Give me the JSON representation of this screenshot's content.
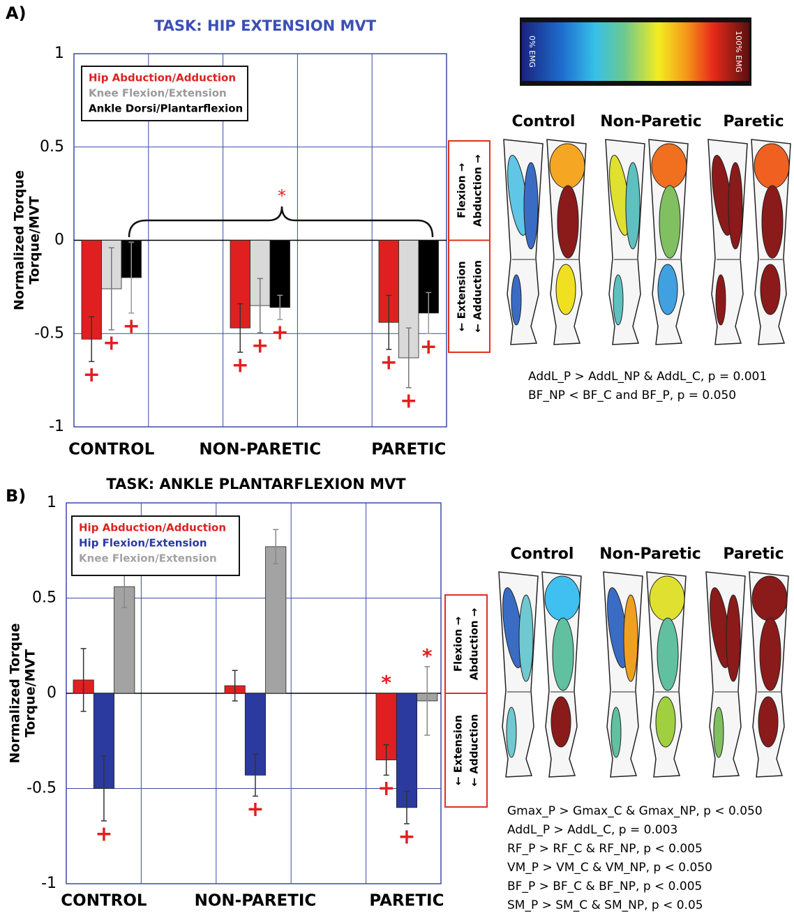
{
  "chart_data": [
    {
      "type": "bar",
      "panel_label": "A)",
      "title": "TASK: HIP EXTENSION MVT",
      "title_color": "#3b4fb5",
      "ylabel": [
        "Normalized Torque",
        "Torque/MVT"
      ],
      "categories": [
        "CONTROL",
        "NON-PARETIC",
        "PARETIC"
      ],
      "ylim": [
        -1,
        1
      ],
      "yticks": [
        -1,
        -0.5,
        0,
        0.5,
        1
      ],
      "grid": true,
      "legend": "upper left",
      "series": [
        {
          "name": "Hip Abduction/Adduction",
          "color": "#e02020",
          "error_color": "#333333",
          "values": [
            -0.53,
            -0.47,
            -0.44
          ],
          "errors": [
            0.12,
            0.13,
            0.145
          ],
          "marks_below": [
            "+",
            "+",
            "+"
          ]
        },
        {
          "name": "Knee Flexion/Extension",
          "color": "#d9d9d9",
          "error_color": "#777777",
          "values": [
            -0.26,
            -0.35,
            -0.63
          ],
          "errors": [
            0.22,
            0.145,
            0.16
          ],
          "marks_below": [
            "+",
            "+",
            "+"
          ]
        },
        {
          "name": "Ankle Dorsi/Plantarflexion",
          "color": "#000000",
          "error_color": "#999999",
          "values": [
            -0.2,
            -0.36,
            -0.39
          ],
          "errors": [
            0.19,
            0.065,
            0.11
          ],
          "marks_below": [
            "+",
            "+",
            "+"
          ]
        }
      ],
      "bracket_label": "*",
      "direction_labels": {
        "positive": [
          "Flexion →",
          "Abduction →"
        ],
        "negative": [
          "← Extension",
          "← Adduction"
        ]
      }
    },
    {
      "type": "bar",
      "panel_label": "B)",
      "title": "TASK: ANKLE PLANTARFLEXION MVT",
      "title_color": "#000000",
      "ylabel": [
        "Normalized Torque",
        "Torque/MVT"
      ],
      "categories": [
        "CONTROL",
        "NON-PARETIC",
        "PARETIC"
      ],
      "ylim": [
        -1,
        1
      ],
      "yticks": [
        -1,
        -0.5,
        0,
        0.5,
        1
      ],
      "grid": true,
      "legend": "upper left",
      "series": [
        {
          "name": "Hip Abduction/Adduction",
          "color": "#e02020",
          "error_color": "#333333",
          "values": [
            0.07,
            0.04,
            -0.35
          ],
          "errors": [
            0.165,
            0.08,
            0.08
          ],
          "marks_below": [
            null,
            null,
            "+"
          ],
          "marks_above": [
            null,
            null,
            "*"
          ]
        },
        {
          "name": "Hip Flexion/Extension",
          "color": "#2b3a9e",
          "error_color": "#333333",
          "values": [
            -0.5,
            -0.43,
            -0.6
          ],
          "errors": [
            0.17,
            0.11,
            0.085
          ],
          "marks_below": [
            "+",
            "+",
            "+"
          ]
        },
        {
          "name": "Knee Flexion/Extension",
          "color": "#a3a3a3",
          "error_color": "#888888",
          "values": [
            0.56,
            0.77,
            -0.04
          ],
          "errors": [
            0.11,
            0.09,
            0.18
          ],
          "marks_above": [
            null,
            null,
            "*"
          ]
        }
      ],
      "direction_labels": {
        "positive": [
          "Flexion →",
          "Abduction →"
        ],
        "negative": [
          "← Extension",
          "← Adduction"
        ]
      }
    }
  ],
  "figure": {
    "colorbar": {
      "low": "0% EMG",
      "high": "100% EMG"
    },
    "panels": [
      {
        "leg_titles": [
          "Control",
          "Non-Paretic",
          "Paretic"
        ],
        "stats": [
          "AddL_P > AddL_NP & AddL_C, p = 0.001",
          "BF_NP < BF_C and BF_P, p = 0.050"
        ]
      },
      {
        "leg_titles": [
          "Control",
          "Non-Paretic",
          "Paretic"
        ],
        "stats": [
          "Gmax_P > Gmax_C & Gmax_NP, p < 0.050",
          "AddL_P > AddL_C, p = 0.003",
          "RF_P > RF_C & RF_NP, p < 0.005",
          "VM_P > VM_C & VM_NP, p < 0.050",
          "BF_P > BF_C & BF_NP, p < 0.005",
          "SM_P > SM_C & SM_NP, p < 0.05"
        ]
      }
    ]
  }
}
